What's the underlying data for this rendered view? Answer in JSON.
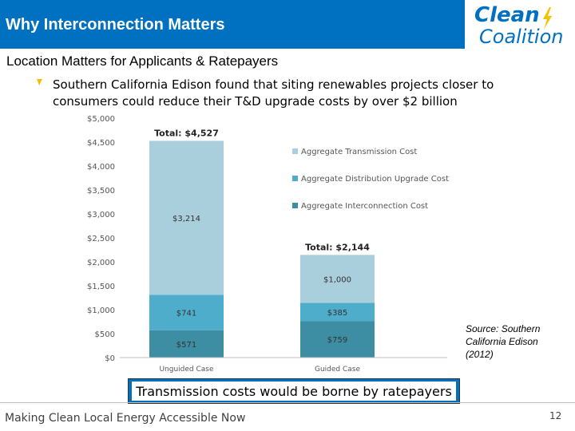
{
  "slide": {
    "title": "Why Interconnection Matters",
    "subtitle": "Location Matters for Applicants & Ratepayers",
    "bullet": "Southern California Edison found that siting renewables projects closer to consumers could reduce their T&D upgrade costs by over $2 billion",
    "source": "Source:  Southern California Edison (2012)",
    "callout": "Transmission costs would be borne by ratepayers",
    "footer": "Making Clean Local Energy Accessible Now",
    "page_number": "12"
  },
  "logo": {
    "line1": "Clean",
    "line2": "Coalition"
  },
  "colors": {
    "header": "#0070c0",
    "transmission": "#a9cfdc",
    "distribution": "#4fadcc",
    "interconnection": "#3e8ea3",
    "bullet": "#f2c200"
  },
  "chart_data": {
    "type": "bar",
    "stacked": true,
    "categories": [
      "Unguided Case",
      "Guided Case"
    ],
    "series": [
      {
        "name": "Aggregate Interconnection Cost",
        "values": [
          571,
          759
        ],
        "labels": [
          "$571",
          "$759"
        ],
        "color": "#3e8ea3"
      },
      {
        "name": "Aggregate Distribution Upgrade Cost",
        "values": [
          741,
          385
        ],
        "labels": [
          "$741",
          "$385"
        ],
        "color": "#4fadcc"
      },
      {
        "name": "Aggregate Transmission Cost",
        "values": [
          3214,
          1000
        ],
        "labels": [
          "$3,214",
          "$1,000"
        ],
        "color": "#a9cfdc"
      }
    ],
    "totals": [
      "Total: $4,527",
      "Total: $2,144"
    ],
    "ylim": [
      0,
      5000
    ],
    "yticks": [
      0,
      500,
      1000,
      1500,
      2000,
      2500,
      3000,
      3500,
      4000,
      4500,
      5000
    ],
    "ytick_labels": [
      "$0",
      "$500",
      "$1,000",
      "$1,500",
      "$2,000",
      "$2,500",
      "$3,000",
      "$3,500",
      "$4,000",
      "$4,500",
      "$5,000"
    ],
    "legend": [
      "Aggregate Transmission Cost",
      "Aggregate Distribution Upgrade Cost",
      "Aggregate Interconnection Cost"
    ],
    "legend_position": "right",
    "grid": false
  }
}
